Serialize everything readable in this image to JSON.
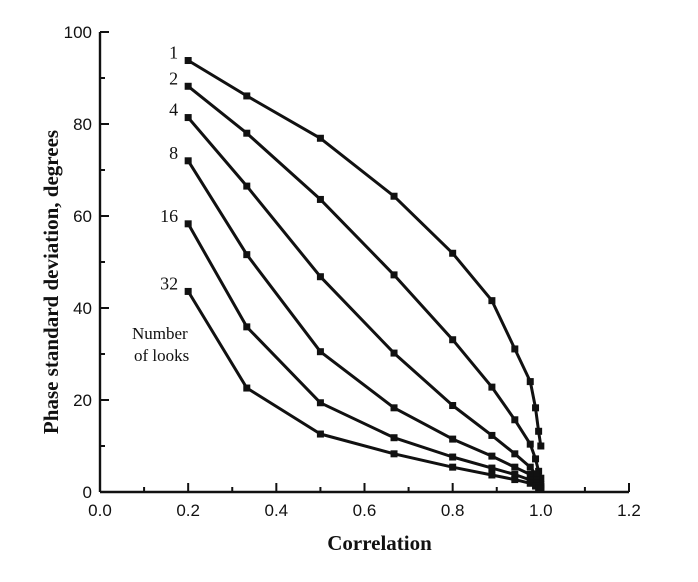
{
  "chart_data": {
    "type": "line",
    "title": "",
    "xlabel": "Correlation",
    "ylabel": "Phase standard deviation, degrees",
    "xlim": [
      0.0,
      1.2
    ],
    "ylim": [
      0,
      100
    ],
    "x_ticks": [
      "0.0",
      "0.2",
      "0.4",
      "0.6",
      "0.8",
      "1.0",
      "1.2"
    ],
    "y_ticks": [
      "0",
      "20",
      "40",
      "60",
      "80",
      "100"
    ],
    "grid": false,
    "legend": "none",
    "annotation": [
      "Number",
      "of looks"
    ],
    "series": [
      {
        "name": "1",
        "x": [
          0.2,
          0.333,
          0.5,
          0.667,
          0.8,
          0.889,
          0.941,
          0.976,
          0.988,
          0.995,
          1.0
        ],
        "y": [
          93.8,
          86.1,
          76.9,
          64.3,
          51.9,
          41.6,
          31.1,
          24.0,
          18.3,
          13.2,
          10.0
        ]
      },
      {
        "name": "2",
        "x": [
          0.2,
          0.333,
          0.5,
          0.667,
          0.8,
          0.889,
          0.941,
          0.976,
          0.988,
          0.995,
          1.0
        ],
        "y": [
          88.2,
          78.0,
          63.6,
          47.2,
          33.1,
          22.8,
          15.7,
          10.4,
          7.2,
          4.5,
          3.0
        ]
      },
      {
        "name": "4",
        "x": [
          0.2,
          0.333,
          0.5,
          0.667,
          0.8,
          0.889,
          0.941,
          0.976,
          0.988,
          0.995,
          1.0
        ],
        "y": [
          81.4,
          66.5,
          46.8,
          30.2,
          18.8,
          12.3,
          8.3,
          5.4,
          3.9,
          2.5,
          1.6
        ]
      },
      {
        "name": "8",
        "x": [
          0.2,
          0.333,
          0.5,
          0.667,
          0.8,
          0.889,
          0.941,
          0.976,
          0.988,
          0.995,
          1.0
        ],
        "y": [
          72.0,
          51.6,
          30.5,
          18.3,
          11.5,
          7.8,
          5.4,
          3.8,
          2.7,
          1.8,
          1.2
        ]
      },
      {
        "name": "16",
        "x": [
          0.2,
          0.333,
          0.5,
          0.667,
          0.8,
          0.889,
          0.941,
          0.976,
          0.988,
          0.995,
          1.0
        ],
        "y": [
          58.3,
          35.9,
          19.4,
          11.8,
          7.6,
          5.2,
          3.8,
          2.6,
          1.9,
          1.3,
          0.9
        ]
      },
      {
        "name": "32",
        "x": [
          0.2,
          0.333,
          0.5,
          0.667,
          0.8,
          0.889,
          0.941,
          0.976,
          0.988,
          0.995,
          1.0
        ],
        "y": [
          43.6,
          22.6,
          12.6,
          8.3,
          5.4,
          3.7,
          2.7,
          1.9,
          1.3,
          0.9,
          0.6
        ]
      }
    ]
  }
}
